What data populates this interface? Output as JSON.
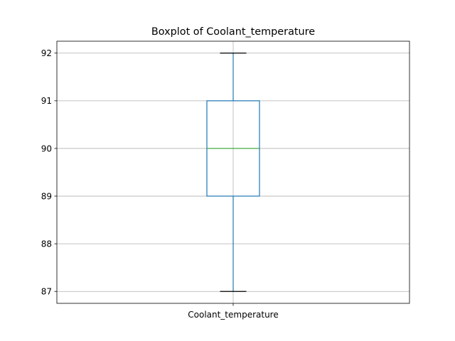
{
  "chart_data": {
    "type": "box",
    "title": "Boxplot of Coolant_temperature",
    "xlabel": "",
    "ylabel": "",
    "categories": [
      "Coolant_temperature"
    ],
    "boxes": [
      {
        "category": "Coolant_temperature",
        "whisker_low": 87,
        "q1": 89,
        "median": 90,
        "q3": 91,
        "whisker_high": 92
      }
    ],
    "ylim": [
      86.75,
      92.25
    ],
    "yticks": [
      87,
      88,
      89,
      90,
      91,
      92
    ],
    "grid": true,
    "colors": {
      "box": "#1f77b4",
      "whisker": "#1f77b4",
      "median": "#2ca02c",
      "cap": "#000000",
      "grid": "#b0b0b0"
    }
  }
}
